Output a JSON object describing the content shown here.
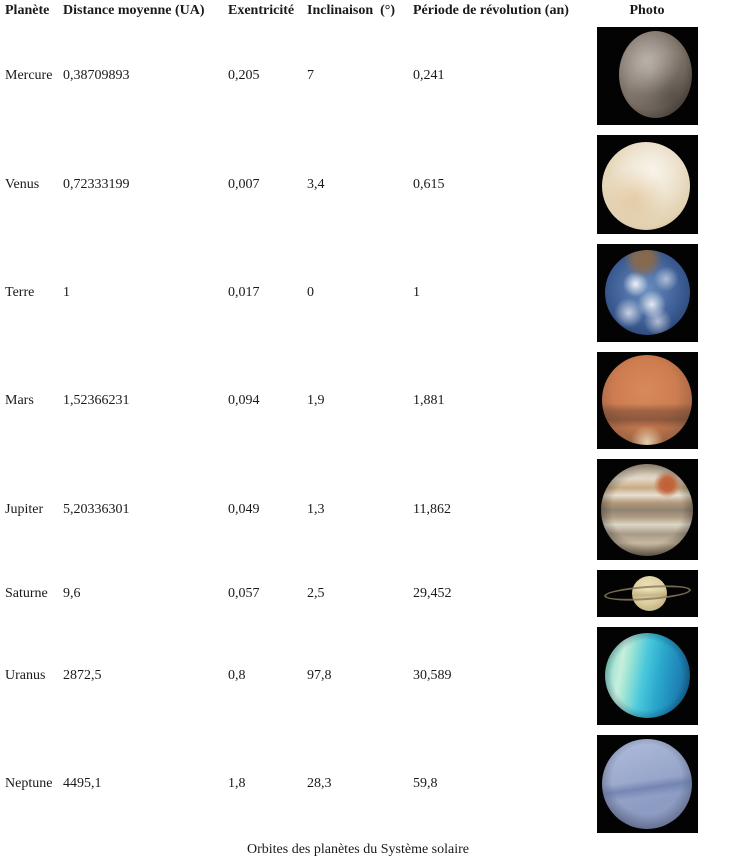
{
  "page": {
    "background": "#ffffff",
    "text_color": "#1a1a1a",
    "caption": "Orbites des planètes du Système solaire"
  },
  "table": {
    "columns": [
      {
        "key": "name",
        "label": "Planète"
      },
      {
        "key": "distance",
        "label": "Distance moyenne (UA)"
      },
      {
        "key": "eccentricity",
        "label": "Exentricité"
      },
      {
        "key": "inclination",
        "label": "Inclinaison  (°)"
      },
      {
        "key": "period",
        "label": "Période de révolution (an)"
      },
      {
        "key": "photo",
        "label": "Photo"
      }
    ],
    "rows": [
      {
        "name": "Mercure",
        "distance": "0,38709893",
        "eccentricity": "0,205",
        "inclination": "7",
        "period": "0,241",
        "photo": {
          "icon": "mercury-planet-photo",
          "colors": [
            "#a99e93",
            "#7d7268",
            "#463f38"
          ]
        }
      },
      {
        "name": "Venus",
        "distance": "0,72333199",
        "eccentricity": "0,007",
        "inclination": "3,4",
        "period": "0,615",
        "photo": {
          "icon": "venus-planet-photo",
          "colors": [
            "#f2ead9",
            "#e3d3b4",
            "#caa878"
          ]
        }
      },
      {
        "name": "Terre",
        "distance": "1",
        "eccentricity": "0,017",
        "inclination": "0",
        "period": "1",
        "photo": {
          "icon": "earth-planet-photo",
          "colors": [
            "#6b8fc0",
            "#27406e",
            "#8a6a4a"
          ]
        }
      },
      {
        "name": "Mars",
        "distance": "1,52366231",
        "eccentricity": "0,094",
        "inclination": "1,9",
        "period": "1,881",
        "photo": {
          "icon": "mars-planet-photo",
          "colors": [
            "#cd7c50",
            "#8a5a40",
            "#e8d9b4"
          ]
        }
      },
      {
        "name": "Jupiter",
        "distance": "5,20336301",
        "eccentricity": "0,049",
        "inclination": "1,3",
        "period": "11,862",
        "photo": {
          "icon": "jupiter-planet-photo",
          "colors": [
            "#e2d9c8",
            "#b49a7c",
            "#8f8270",
            "#c05f35"
          ]
        }
      },
      {
        "name": "Saturne",
        "distance": "9,6",
        "eccentricity": "0,057",
        "inclination": "2,5",
        "period": "29,452",
        "photo": {
          "icon": "saturn-planet-photo",
          "colors": [
            "#ddd0a2",
            "#c2b080",
            "#8d7d5f"
          ]
        }
      },
      {
        "name": "Uranus",
        "distance": "2872,5",
        "eccentricity": "0,8",
        "inclination": "97,8",
        "period": "30,589",
        "photo": {
          "icon": "uranus-planet-photo",
          "colors": [
            "#49c8dc",
            "#c8eedd",
            "#1f86b8"
          ]
        }
      },
      {
        "name": "Neptune",
        "distance": "4495,1",
        "eccentricity": "1,8",
        "inclination": "28,3",
        "period": "59,8",
        "photo": {
          "icon": "neptune-planet-photo",
          "colors": [
            "#9dabce",
            "#7288b5",
            "#b3bedd"
          ]
        }
      }
    ]
  }
}
